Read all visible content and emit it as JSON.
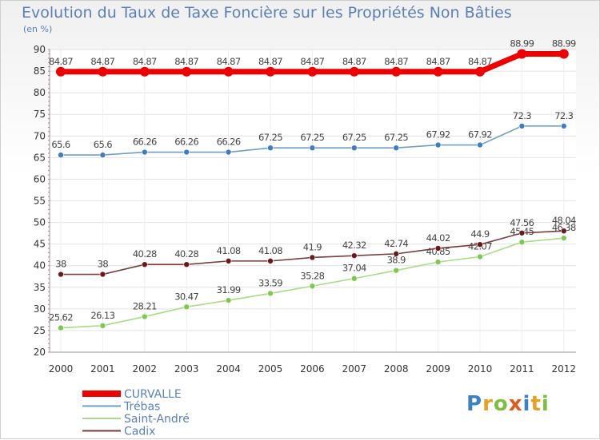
{
  "chart_data": {
    "type": "line",
    "title": "Evolution du Taux de Taxe Foncière sur les Propriétés Non Bâties",
    "unit_label": "(en %)",
    "x": [
      "2000",
      "2001",
      "2002",
      "2003",
      "2004",
      "2005",
      "2006",
      "2007",
      "2008",
      "2009",
      "2010",
      "2011",
      "2012"
    ],
    "ylim": [
      20,
      90
    ],
    "yticks": [
      20,
      25,
      30,
      35,
      40,
      45,
      50,
      55,
      60,
      65,
      70,
      75,
      80,
      85,
      90
    ],
    "series": [
      {
        "name": "CURVALLE",
        "color": "#ee0000",
        "thick": true,
        "values": [
          84.87,
          84.87,
          84.87,
          84.87,
          84.87,
          84.87,
          84.87,
          84.87,
          84.87,
          84.87,
          84.87,
          88.99,
          88.99
        ],
        "labels": [
          "84.87",
          "84.87",
          "84.87",
          "84.87",
          "84.87",
          "84.87",
          "84.87",
          "84.87",
          "84.87",
          "84.87",
          "84.87",
          "88.99",
          "88.99"
        ]
      },
      {
        "name": "Trébas",
        "color": "#6e9ec6",
        "point": "#3f7dc0",
        "values": [
          65.6,
          65.6,
          66.26,
          66.26,
          66.26,
          67.25,
          67.25,
          67.25,
          67.25,
          67.92,
          67.92,
          72.3,
          72.3
        ],
        "labels": [
          "65.6",
          "65.6",
          "66.26",
          "66.26",
          "66.26",
          "67.25",
          "67.25",
          "67.25",
          "67.25",
          "67.92",
          "67.92",
          "72.3",
          "72.3"
        ]
      },
      {
        "name": "Saint-André",
        "color": "#a8dc84",
        "point": "#7ec850",
        "values": [
          25.62,
          26.13,
          28.21,
          30.47,
          31.99,
          33.59,
          35.28,
          37.04,
          38.9,
          40.85,
          42.07,
          45.45,
          46.38
        ],
        "labels": [
          "25.62",
          "26.13",
          "28.21",
          "30.47",
          "31.99",
          "33.59",
          "35.28",
          "37.04",
          "38.9",
          "40.85",
          "42.07",
          "45.45",
          "46.38"
        ]
      },
      {
        "name": "Cadix",
        "color": "#7a3c3c",
        "point": "#6a1a1a",
        "values": [
          38,
          38,
          40.28,
          40.28,
          41.08,
          41.08,
          41.9,
          42.32,
          42.74,
          44.02,
          44.9,
          47.56,
          48.04
        ],
        "labels": [
          "38",
          "38",
          "40.28",
          "40.28",
          "41.08",
          "41.08",
          "41.9",
          "42.32",
          "42.74",
          "44.02",
          "44.9",
          "47.56",
          "48.04"
        ]
      }
    ]
  },
  "logo": {
    "text": "Proxiti",
    "letters": [
      "P",
      "r",
      "o",
      "x",
      "i",
      "t",
      "i"
    ],
    "colors": [
      "#3b82c4",
      "#e8a020",
      "#7cbf3f",
      "#e05a1a",
      "#3b82c4",
      "#e8a020",
      "#7cbf3f"
    ]
  }
}
